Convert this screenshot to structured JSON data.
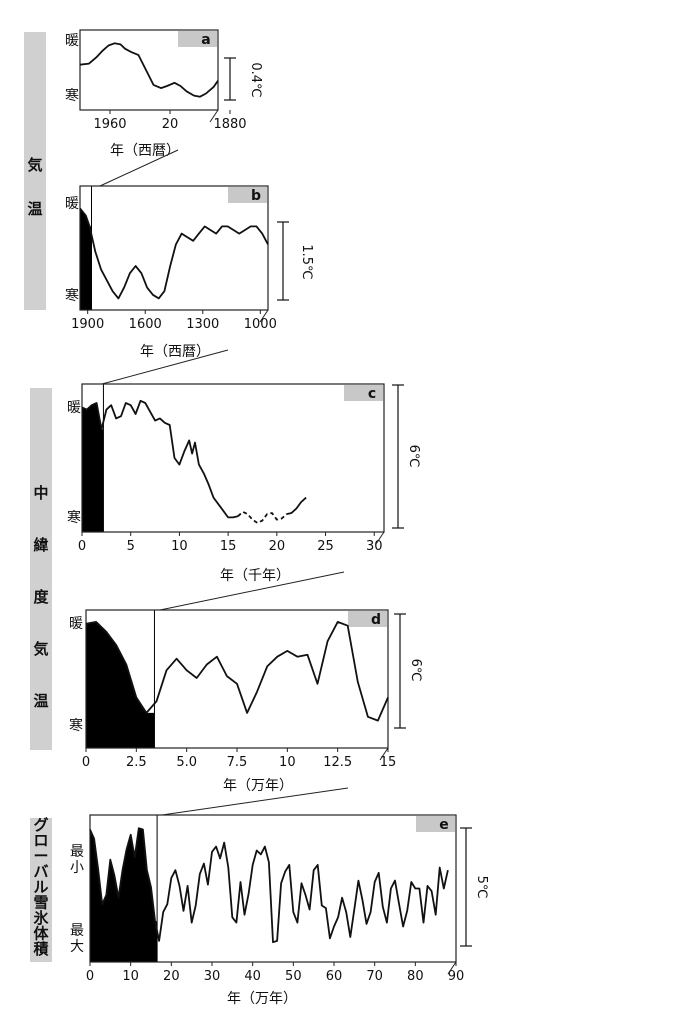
{
  "side_labels": {
    "air_temp": "気 温",
    "mid_lat_temp": "中 緯 度 気 温",
    "global_ice": "グローバル雪氷体積"
  },
  "chart_data": [
    {
      "type": "line",
      "panel": "a",
      "warm_label": "暖",
      "cold_label": "寒",
      "scale_bar": "0.4℃",
      "xlabel": "年（西暦）",
      "ticks": [
        "1960",
        "20",
        "1880"
      ],
      "series": [
        {
          "x": [
            1980,
            1974,
            1969,
            1965,
            1961,
            1957,
            1953,
            1950,
            1946,
            1941,
            1936,
            1931,
            1926,
            1922,
            1917,
            1913,
            1909,
            1904,
            1900,
            1896,
            1891,
            1888
          ],
          "values": [
            0.35,
            0.36,
            0.42,
            0.48,
            0.53,
            0.55,
            0.54,
            0.5,
            0.47,
            0.44,
            0.3,
            0.16,
            0.13,
            0.15,
            0.18,
            0.15,
            0.1,
            0.06,
            0.05,
            0.08,
            0.14,
            0.2
          ]
        }
      ]
    },
    {
      "type": "line",
      "panel": "b",
      "warm_label": "暖",
      "cold_label": "寒",
      "scale_bar": "1.5℃",
      "xlabel": "年（西暦）",
      "ticks": [
        "1900",
        "1600",
        "1300",
        "1000"
      ],
      "series": [
        {
          "x": [
            1940,
            1910,
            1890,
            1860,
            1830,
            1800,
            1770,
            1740,
            1710,
            1680,
            1650,
            1620,
            1590,
            1560,
            1530,
            1500,
            1470,
            1440,
            1410,
            1380,
            1350,
            1320,
            1290,
            1260,
            1230,
            1200,
            1170,
            1140,
            1110,
            1080,
            1050,
            1020,
            990,
            960
          ],
          "values": [
            1.3,
            1.2,
            1.05,
            0.7,
            0.45,
            0.3,
            0.15,
            0.05,
            0.2,
            0.4,
            0.5,
            0.4,
            0.2,
            0.1,
            0.05,
            0.15,
            0.5,
            0.8,
            0.95,
            0.9,
            0.85,
            0.95,
            1.05,
            1.0,
            0.95,
            1.05,
            1.05,
            1.0,
            0.95,
            1.0,
            1.05,
            1.05,
            0.95,
            0.8
          ]
        }
      ]
    },
    {
      "type": "line",
      "panel": "c",
      "warm_label": "暖",
      "cold_label": "寒",
      "scale_bar": "6℃",
      "xlabel": "年（千年）",
      "ticks": [
        "0",
        "5",
        "10",
        "15",
        "20",
        "25",
        "30"
      ],
      "series": [
        {
          "x": [
            0,
            0.5,
            1,
            1.5,
            2,
            2.5,
            3,
            3.5,
            4,
            4.5,
            5,
            5.5,
            6,
            6.5,
            7,
            7.5,
            8,
            8.5,
            9,
            9.5,
            10,
            10.5,
            11,
            11.3,
            11.6,
            12,
            12.5,
            13,
            13.5,
            14,
            14.5,
            15,
            15.5,
            16
          ],
          "values": [
            5.3,
            5.2,
            5.4,
            5.5,
            4.3,
            5.2,
            5.4,
            4.8,
            4.9,
            5.5,
            5.4,
            5.0,
            5.6,
            5.5,
            5.1,
            4.7,
            4.8,
            4.6,
            4.5,
            3.0,
            2.7,
            3.3,
            3.8,
            3.2,
            3.7,
            2.7,
            2.3,
            1.8,
            1.2,
            0.9,
            0.6,
            0.3,
            0.3,
            0.35
          ]
        },
        {
          "name": "dashed",
          "x": [
            16,
            16.5,
            17,
            17.5,
            18,
            18.5,
            19,
            19.5,
            20,
            20.5,
            21
          ],
          "values": [
            0.35,
            0.55,
            0.45,
            0.2,
            0.05,
            0.15,
            0.45,
            0.5,
            0.2,
            0.25,
            0.45
          ]
        },
        {
          "x": [
            21,
            21.5,
            22,
            22.5,
            23
          ],
          "values": [
            0.45,
            0.5,
            0.7,
            1.0,
            1.2
          ]
        }
      ]
    },
    {
      "type": "line",
      "panel": "d",
      "warm_label": "暖",
      "cold_label": "寒",
      "scale_bar": "6℃",
      "xlabel": "年（万年）",
      "ticks": [
        "0",
        "2.5",
        "5.0",
        "7.5",
        "10",
        "12.5",
        "15"
      ],
      "series": [
        {
          "x": [
            0,
            0.5,
            1,
            1.5,
            2,
            2.5,
            3,
            3.5,
            4,
            4.5,
            5,
            5.5,
            6,
            6.5,
            7,
            7.5,
            8,
            8.5,
            9,
            9.5,
            10,
            10.5,
            11,
            11.5,
            12,
            12.5,
            13,
            13.5,
            14,
            14.5,
            15
          ],
          "values": [
            6.0,
            6.1,
            5.6,
            4.9,
            3.9,
            2.2,
            1.4,
            2.0,
            3.6,
            4.2,
            3.6,
            3.2,
            3.9,
            4.3,
            3.3,
            2.9,
            1.4,
            2.5,
            3.8,
            4.3,
            4.6,
            4.3,
            4.4,
            2.9,
            5.1,
            6.1,
            5.9,
            3.0,
            1.2,
            1.0,
            2.2
          ]
        }
      ]
    },
    {
      "type": "line",
      "panel": "e",
      "warm_label": "最小",
      "cold_label": "最大",
      "ylabel_side": "グローバル雪氷体積",
      "scale_bar": "5℃",
      "xlabel": "年（万年）",
      "ticks": [
        "0",
        "10",
        "20",
        "30",
        "40",
        "50",
        "60",
        "70",
        "80",
        "90"
      ],
      "series": [
        {
          "x": [
            0,
            1,
            2,
            3,
            4,
            5,
            6,
            7,
            8,
            9,
            10,
            11,
            12,
            13,
            14,
            15,
            16,
            17,
            18,
            19,
            20,
            21,
            22,
            23,
            24,
            25,
            26,
            27,
            28,
            29,
            30,
            31,
            32,
            33,
            34,
            35,
            36,
            37,
            38,
            39,
            40,
            41,
            42,
            43,
            44,
            45,
            46,
            47,
            48,
            49,
            50,
            51,
            52,
            53,
            54,
            55,
            56,
            57,
            58,
            59,
            60,
            61,
            62,
            63,
            64,
            65,
            66,
            67,
            68,
            69,
            70,
            71,
            72,
            73,
            74,
            75,
            76,
            77,
            78,
            79,
            80,
            81,
            82,
            83,
            84,
            85,
            86,
            87,
            88
          ],
          "values": [
            9.5,
            8.8,
            6.5,
            3.8,
            4.5,
            7.2,
            6.0,
            4.3,
            6.4,
            8.0,
            9.1,
            7.4,
            9.6,
            9.5,
            6.4,
            5.1,
            2.5,
            1.0,
            3.2,
            3.8,
            5.8,
            6.4,
            5.2,
            3.3,
            5.2,
            2.4,
            3.7,
            6.1,
            6.9,
            5.3,
            7.8,
            8.2,
            7.3,
            8.5,
            6.6,
            2.8,
            2.4,
            5.5,
            3.0,
            4.6,
            6.8,
            7.9,
            7.6,
            8.2,
            7.0,
            0.9,
            1.0,
            5.4,
            6.3,
            6.8,
            3.2,
            2.4,
            5.4,
            4.5,
            3.4,
            6.4,
            6.8,
            3.7,
            3.5,
            1.2,
            2.1,
            2.8,
            4.3,
            3.2,
            1.3,
            3.4,
            5.6,
            4.1,
            2.3,
            3.2,
            5.5,
            6.2,
            3.6,
            2.4,
            5.0,
            5.6,
            3.8,
            2.1,
            3.3,
            5.5,
            5.0,
            5.0,
            2.4,
            5.2,
            4.8,
            3.0,
            6.6,
            5.0,
            6.4
          ]
        }
      ]
    }
  ]
}
